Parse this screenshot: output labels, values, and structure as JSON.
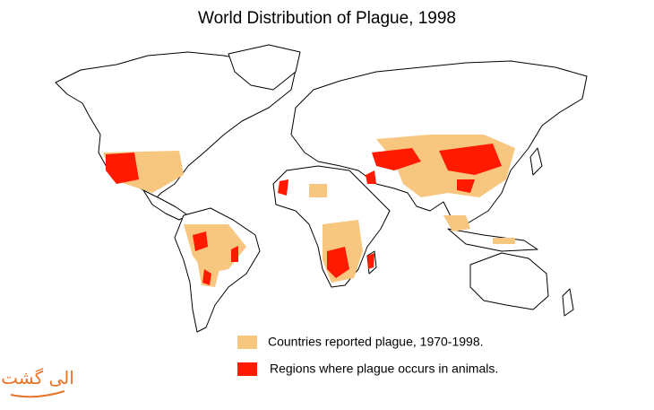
{
  "title": "World Distribution of Plague, 1998",
  "legend": [
    {
      "label": "Countries reported plague, 1970-1998.",
      "color": "#f7c67f"
    },
    {
      "label": "Regions where plague occurs in animals.",
      "color": "#ff1a00"
    }
  ],
  "watermark": "الی گشت"
}
